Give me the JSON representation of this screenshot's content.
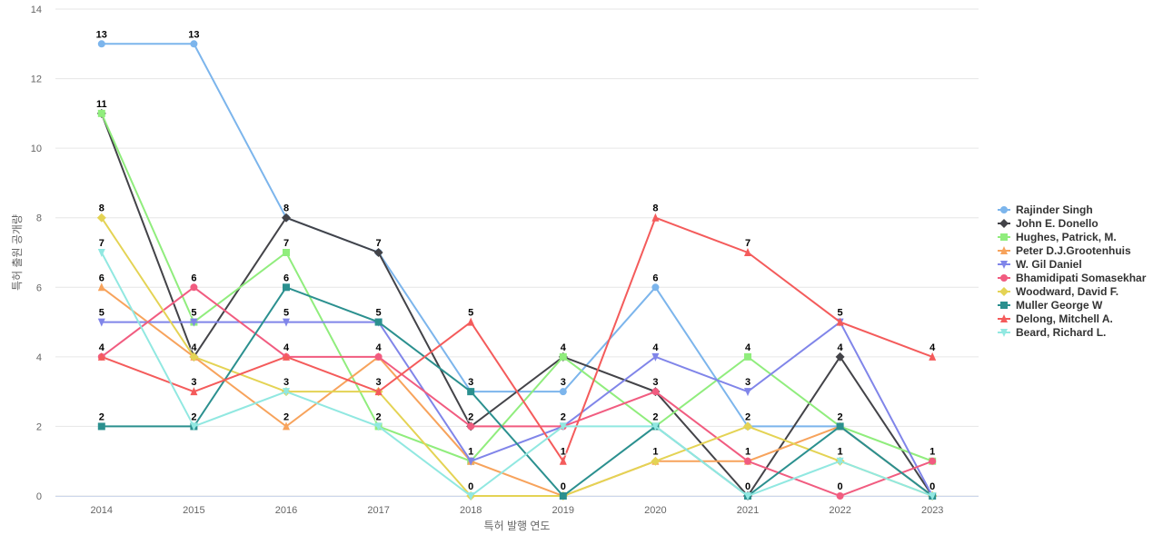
{
  "chart_data": {
    "type": "line",
    "title": "",
    "xlabel": "특허 발행 연도",
    "ylabel": "특허 출원 공개량",
    "categories": [
      "2014",
      "2015",
      "2016",
      "2017",
      "2018",
      "2019",
      "2020",
      "2021",
      "2022",
      "2023"
    ],
    "ylim": [
      0,
      14
    ],
    "yticks": [
      0,
      2,
      4,
      6,
      8,
      10,
      12,
      14
    ],
    "grid": true,
    "legend_position": "right",
    "series": [
      {
        "name": "Rajinder Singh",
        "color": "#7cb5ec",
        "marker": "circle",
        "values": [
          13,
          13,
          8,
          7,
          3,
          3,
          6,
          2,
          2,
          0
        ]
      },
      {
        "name": "John E. Donello",
        "color": "#434348",
        "marker": "diamond",
        "values": [
          11,
          4,
          8,
          7,
          2,
          4,
          3,
          0,
          4,
          0
        ]
      },
      {
        "name": "Hughes, Patrick, M.",
        "color": "#90ed7d",
        "marker": "square",
        "values": [
          11,
          5,
          7,
          2,
          1,
          4,
          2,
          4,
          2,
          1
        ]
      },
      {
        "name": "Peter D.J.Grootenhuis",
        "color": "#f7a35c",
        "marker": "triangle",
        "values": [
          6,
          4,
          2,
          4,
          1,
          0,
          1,
          1,
          2,
          0
        ]
      },
      {
        "name": "W. Gil Daniel",
        "color": "#8085e9",
        "marker": "triangle-down",
        "values": [
          5,
          5,
          5,
          5,
          1,
          2,
          4,
          3,
          5,
          0
        ]
      },
      {
        "name": "Bhamidipati Somasekhar",
        "color": "#f15c80",
        "marker": "circle",
        "values": [
          4,
          6,
          4,
          4,
          2,
          2,
          3,
          1,
          0,
          1
        ]
      },
      {
        "name": "Woodward, David F.",
        "color": "#e4d354",
        "marker": "diamond",
        "values": [
          8,
          4,
          3,
          3,
          0,
          0,
          1,
          2,
          1,
          0
        ]
      },
      {
        "name": "Muller George W",
        "color": "#2b908f",
        "marker": "square",
        "values": [
          2,
          2,
          6,
          5,
          3,
          0,
          2,
          0,
          2,
          0
        ]
      },
      {
        "name": "Delong, Mitchell A.",
        "color": "#f45b5b",
        "marker": "triangle",
        "values": [
          4,
          3,
          4,
          3,
          5,
          1,
          8,
          7,
          5,
          4
        ]
      },
      {
        "name": "Beard, Richard L.",
        "color": "#91e8e1",
        "marker": "triangle-down",
        "values": [
          7,
          2,
          3,
          2,
          0,
          2,
          2,
          0,
          1,
          0
        ]
      }
    ],
    "data_labels": [
      {
        "series": 0,
        "index": 0,
        "text": "13"
      },
      {
        "series": 0,
        "index": 1,
        "text": "13"
      },
      {
        "series": 1,
        "index": 0,
        "text": "11"
      },
      {
        "series": 6,
        "index": 0,
        "text": "8"
      },
      {
        "series": 9,
        "index": 0,
        "text": "7"
      },
      {
        "series": 3,
        "index": 0,
        "text": "6"
      },
      {
        "series": 4,
        "index": 0,
        "text": "5"
      },
      {
        "series": 8,
        "index": 0,
        "text": "4"
      },
      {
        "series": 7,
        "index": 0,
        "text": "2"
      },
      {
        "series": 5,
        "index": 1,
        "text": "6"
      },
      {
        "series": 2,
        "index": 1,
        "text": "5"
      },
      {
        "series": 1,
        "index": 1,
        "text": "4"
      },
      {
        "series": 8,
        "index": 1,
        "text": "3"
      },
      {
        "series": 7,
        "index": 1,
        "text": "2"
      },
      {
        "series": 0,
        "index": 2,
        "text": "8"
      },
      {
        "series": 2,
        "index": 2,
        "text": "7"
      },
      {
        "series": 7,
        "index": 2,
        "text": "6"
      },
      {
        "series": 4,
        "index": 2,
        "text": "5"
      },
      {
        "series": 5,
        "index": 2,
        "text": "4"
      },
      {
        "series": 9,
        "index": 2,
        "text": "3"
      },
      {
        "series": 3,
        "index": 2,
        "text": "2"
      },
      {
        "series": 1,
        "index": 3,
        "text": "7"
      },
      {
        "series": 7,
        "index": 3,
        "text": "5"
      },
      {
        "series": 3,
        "index": 3,
        "text": "4"
      },
      {
        "series": 8,
        "index": 3,
        "text": "3"
      },
      {
        "series": 9,
        "index": 3,
        "text": "2"
      },
      {
        "series": 8,
        "index": 4,
        "text": "5"
      },
      {
        "series": 7,
        "index": 4,
        "text": "3"
      },
      {
        "series": 5,
        "index": 4,
        "text": "2"
      },
      {
        "series": 2,
        "index": 4,
        "text": "1"
      },
      {
        "series": 9,
        "index": 4,
        "text": "0"
      },
      {
        "series": 2,
        "index": 5,
        "text": "4"
      },
      {
        "series": 0,
        "index": 5,
        "text": "3"
      },
      {
        "series": 4,
        "index": 5,
        "text": "2"
      },
      {
        "series": 8,
        "index": 5,
        "text": "1"
      },
      {
        "series": 7,
        "index": 5,
        "text": "0"
      },
      {
        "series": 8,
        "index": 6,
        "text": "8"
      },
      {
        "series": 0,
        "index": 6,
        "text": "6"
      },
      {
        "series": 4,
        "index": 6,
        "text": "4"
      },
      {
        "series": 5,
        "index": 6,
        "text": "3"
      },
      {
        "series": 7,
        "index": 6,
        "text": "2"
      },
      {
        "series": 6,
        "index": 6,
        "text": "1"
      },
      {
        "series": 8,
        "index": 7,
        "text": "7"
      },
      {
        "series": 2,
        "index": 7,
        "text": "4"
      },
      {
        "series": 4,
        "index": 7,
        "text": "3"
      },
      {
        "series": 6,
        "index": 7,
        "text": "2"
      },
      {
        "series": 3,
        "index": 7,
        "text": "1"
      },
      {
        "series": 1,
        "index": 7,
        "text": "0"
      },
      {
        "series": 8,
        "index": 8,
        "text": "5"
      },
      {
        "series": 1,
        "index": 8,
        "text": "4"
      },
      {
        "series": 7,
        "index": 8,
        "text": "2"
      },
      {
        "series": 9,
        "index": 8,
        "text": "1"
      },
      {
        "series": 5,
        "index": 8,
        "text": "0"
      },
      {
        "series": 8,
        "index": 9,
        "text": "4"
      },
      {
        "series": 2,
        "index": 9,
        "text": "1"
      },
      {
        "series": 7,
        "index": 9,
        "text": "0"
      }
    ]
  }
}
